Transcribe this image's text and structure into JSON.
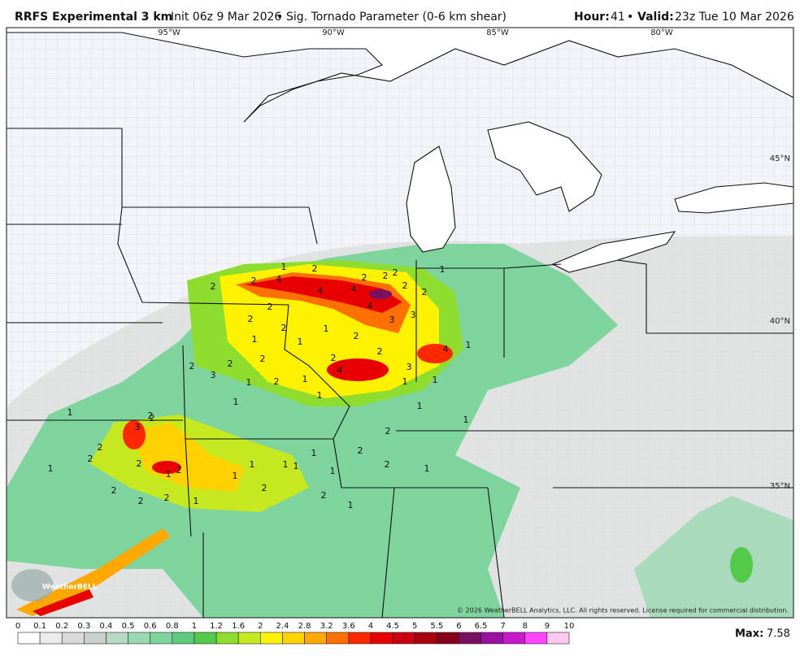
{
  "header": {
    "model": "RRFS Experimental 3 km",
    "init": "Init 06z 9 Mar 2026",
    "separator": "•",
    "parameter": "Sig. Tornado Parameter (0-6 km shear)",
    "hour_label": "Hour:",
    "hour": "41",
    "valid_label": "Valid:",
    "valid": "23z Tue 10 Mar 2026"
  },
  "map": {
    "graticule_labels": [
      "95°W",
      "90°W",
      "85°W",
      "80°W",
      "45°N",
      "40°N",
      "35°N"
    ],
    "contour_labels": [
      1,
      2,
      2,
      4,
      2,
      4,
      4,
      2,
      2,
      2,
      2,
      4,
      1,
      3,
      3,
      2,
      2,
      2,
      1,
      2,
      4,
      3,
      4,
      2,
      2,
      1,
      1,
      2,
      3,
      2,
      1,
      2,
      2,
      1,
      2,
      1,
      1,
      1,
      1,
      1,
      2,
      3,
      2,
      1,
      2,
      1,
      2,
      2,
      2,
      1,
      2,
      2,
      2,
      1,
      1,
      1,
      1,
      2,
      1,
      1,
      1,
      2,
      1,
      2,
      1,
      2,
      2,
      1,
      1
    ],
    "logo": "WeatherBELL",
    "copyright": "© 2026 WeatherBELL Analytics, LLC. All rights reserved. License required for commercial distribution."
  },
  "colorbar": {
    "ticks": [
      0,
      0.1,
      0.2,
      0.3,
      0.4,
      0.5,
      0.6,
      0.8,
      1,
      1.2,
      1.6,
      2,
      2.4,
      2.8,
      3.2,
      3.6,
      4,
      4.5,
      5,
      5.5,
      6,
      6.5,
      7,
      8,
      9,
      10
    ],
    "colors": [
      "#ffffff",
      "#ececec",
      "#dadada",
      "#c8d0cc",
      "#b6d8c4",
      "#9ad8b2",
      "#7fd49e",
      "#5fcb7e",
      "#55c94a",
      "#8edc2e",
      "#c6e81e",
      "#fff200",
      "#ffd200",
      "#ffa800",
      "#ff7000",
      "#ff2800",
      "#e80000",
      "#c80010",
      "#a80010",
      "#880018",
      "#7a1060",
      "#9a10a0",
      "#cc18cc",
      "#ff44ff",
      "#ffc8f0"
    ],
    "max_label": "Max:",
    "max": "7.58"
  }
}
